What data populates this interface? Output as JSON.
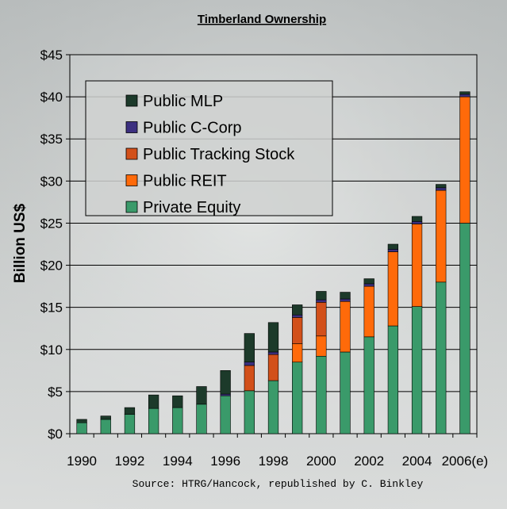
{
  "chart_data": {
    "type": "bar",
    "stacked": true,
    "title": "Timberland Ownership",
    "ylabel": "Billion US$",
    "xlabel": "",
    "ylim": [
      0,
      45
    ],
    "ytick_labels": [
      "$0",
      "$5",
      "$10",
      "$15",
      "$20",
      "$25",
      "$30",
      "$35",
      "$40",
      "$45"
    ],
    "categories": [
      "1990",
      "1991",
      "1992",
      "1993",
      "1994",
      "1995",
      "1996",
      "1997",
      "1998",
      "1999",
      "2000",
      "2001",
      "2002",
      "2003",
      "2004",
      "2005",
      "2006(e)"
    ],
    "xtick_labels": [
      "1990",
      "",
      "1992",
      "",
      "1994",
      "",
      "1996",
      "",
      "1998",
      "",
      "2000",
      "",
      "2002",
      "",
      "2004",
      "",
      "2006(e)"
    ],
    "grid": true,
    "legend_position": "top-left",
    "series": [
      {
        "name": "Private Equity",
        "color": "#3a9a6a",
        "values": [
          1.3,
          1.7,
          2.3,
          3.0,
          3.1,
          3.5,
          4.5,
          5.1,
          6.3,
          8.5,
          9.2,
          9.7,
          11.5,
          12.8,
          15.1,
          18.0,
          25.0
        ]
      },
      {
        "name": "Public REIT",
        "color": "#ff6a0a",
        "values": [
          0,
          0,
          0,
          0,
          0,
          0,
          0,
          0,
          0,
          2.2,
          2.4,
          6.0,
          6.0,
          8.8,
          9.8,
          10.9,
          15.0
        ]
      },
      {
        "name": "Public Tracking Stock",
        "color": "#d2501a",
        "values": [
          0,
          0,
          0,
          0,
          0,
          0,
          0,
          3.0,
          3.1,
          3.1,
          4.0,
          0,
          0,
          0,
          0,
          0,
          0
        ]
      },
      {
        "name": "Public C-Corp",
        "color": "#3c3080",
        "values": [
          0,
          0,
          0,
          0,
          0,
          0,
          0.2,
          0.4,
          0.3,
          0.3,
          0.3,
          0.3,
          0.3,
          0.3,
          0.3,
          0.3,
          0.3
        ]
      },
      {
        "name": "Public MLP",
        "color": "#1c3a2a",
        "values": [
          0.4,
          0.4,
          0.8,
          1.6,
          1.4,
          2.1,
          2.8,
          3.4,
          3.5,
          1.2,
          1.0,
          0.8,
          0.6,
          0.6,
          0.6,
          0.4,
          0.3
        ]
      }
    ],
    "legend_order": [
      "Public MLP",
      "Public C-Corp",
      "Public Tracking Stock",
      "Public REIT",
      "Private Equity"
    ]
  },
  "source": "Source: HTRG/Hancock, republished by C. Binkley"
}
